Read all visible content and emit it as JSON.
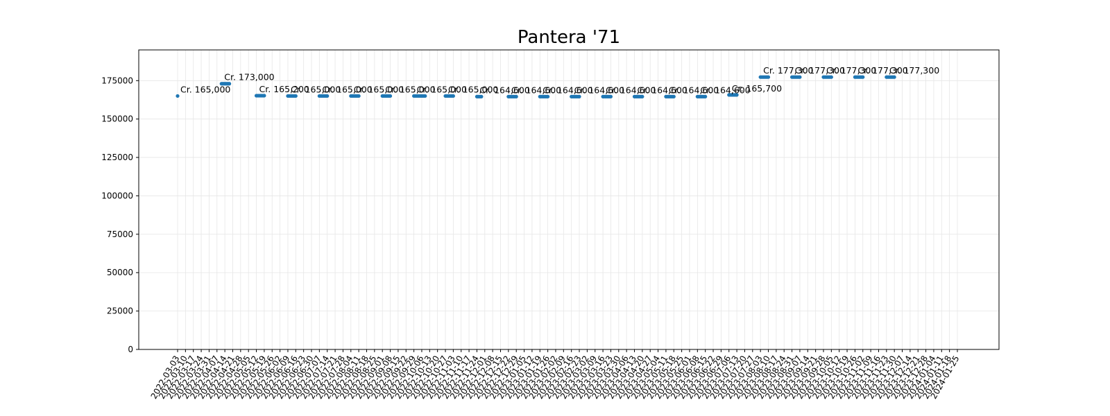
{
  "chart_data": {
    "type": "scatter",
    "title": "Pantera '71",
    "xlabel": "",
    "ylabel": "",
    "ylim": [
      0,
      195000
    ],
    "yticks": [
      0,
      25000,
      50000,
      75000,
      100000,
      125000,
      150000,
      175000
    ],
    "grid": true,
    "legend": "none",
    "color": "#1f77b4",
    "categories": [
      "2022-03-03",
      "2022-03-10",
      "2022-03-17",
      "2022-03-24",
      "2022-03-31",
      "2022-04-07",
      "2022-04-14",
      "2022-04-21",
      "2022-04-28",
      "2022-05-05",
      "2022-05-12",
      "2022-05-19",
      "2022-05-26",
      "2022-06-02",
      "2022-06-09",
      "2022-06-16",
      "2022-06-23",
      "2022-06-30",
      "2022-07-07",
      "2022-07-14",
      "2022-07-21",
      "2022-07-28",
      "2022-08-04",
      "2022-08-11",
      "2022-08-18",
      "2022-08-25",
      "2022-09-01",
      "2022-09-08",
      "2022-09-15",
      "2022-09-22",
      "2022-09-29",
      "2022-10-06",
      "2022-10-13",
      "2022-10-20",
      "2022-10-27",
      "2022-11-03",
      "2022-11-10",
      "2022-11-17",
      "2022-11-24",
      "2022-12-01",
      "2022-12-08",
      "2022-12-15",
      "2022-12-22",
      "2022-12-29",
      "2023-01-05",
      "2023-01-12",
      "2023-01-19",
      "2023-01-26",
      "2023-02-02",
      "2023-02-09",
      "2023-02-16",
      "2023-02-23",
      "2023-03-02",
      "2023-03-09",
      "2023-03-16",
      "2023-03-23",
      "2023-03-30",
      "2023-04-06",
      "2023-04-13",
      "2023-04-20",
      "2023-04-27",
      "2023-05-04",
      "2023-05-11",
      "2023-05-18",
      "2023-05-25",
      "2023-06-01",
      "2023-06-08",
      "2023-06-15",
      "2023-06-22",
      "2023-06-29",
      "2023-07-06",
      "2023-07-13",
      "2023-07-20",
      "2023-07-27",
      "2023-08-03",
      "2023-08-10",
      "2023-08-17",
      "2023-08-24",
      "2023-08-31",
      "2023-09-07",
      "2023-09-14",
      "2023-09-21",
      "2023-09-28",
      "2023-10-05",
      "2023-10-12",
      "2023-10-19",
      "2023-10-26",
      "2023-11-02",
      "2023-11-09",
      "2023-11-16",
      "2023-11-23",
      "2023-11-30",
      "2023-12-07",
      "2023-12-14",
      "2023-12-21",
      "2023-12-28",
      "2024-01-04",
      "2024-01-11",
      "2024-01-18",
      "2024-01-25"
    ],
    "x_tick_labels": [
      "2022-03-03",
      "2022-03-10",
      "2022-03-17",
      "2022-03-24",
      "2022-03-31",
      "2022-04-07",
      "2022-04-14",
      "2022-04-21",
      "2022-04-28",
      "2022-05-05",
      "2022-05-12",
      "2022-05-19",
      "2022-05-26",
      "2022-06-02",
      "2022-06-09",
      "2022-06-16",
      "2022-06-23",
      "2022-06-30",
      "2022-07-07",
      "2022-07-14",
      "2022-07-21",
      "2022-07-28",
      "2022-08-04",
      "2022-08-11",
      "2022-08-18",
      "2022-08-25",
      "2022-09-01",
      "2022-09-08",
      "2022-09-15",
      "2022-09-22",
      "2022-09-29",
      "2022-10-06",
      "2022-10-13",
      "2022-10-20",
      "2022-10-27",
      "2022-11-03",
      "2022-11-10",
      "2022-11-17",
      "2022-11-24",
      "2022-12-01",
      "2022-12-08",
      "2022-12-15",
      "2022-12-22",
      "2022-12-29",
      "2023-01-05",
      "2023-01-12",
      "2023-01-19",
      "2023-01-26",
      "2023-02-02",
      "2023-02-09",
      "2023-02-16",
      "2023-02-23",
      "2023-03-02",
      "2023-03-09",
      "2023-03-16",
      "2023-03-23",
      "2023-03-30",
      "2023-04-06",
      "2023-04-13",
      "2023-04-20",
      "2023-04-27",
      "2023-05-04",
      "2023-05-11",
      "2023-05-18",
      "2023-05-25",
      "2023-06-01",
      "2023-06-08",
      "2023-06-15",
      "2023-06-22",
      "2023-06-29",
      "2023-07-06",
      "2023-07-13",
      "2023-07-20",
      "2023-07-27",
      "2023-08-03",
      "2023-08-10",
      "2023-08-17",
      "2023-08-24",
      "2023-08-31",
      "2023-09-07",
      "2023-09-14",
      "2023-09-21",
      "2023-09-28",
      "2023-10-05",
      "2023-10-12",
      "2023-10-19",
      "2023-10-26",
      "2023-11-02",
      "2023-11-09",
      "2023-11-16",
      "2023-11-23",
      "2023-11-30",
      "2023-12-07",
      "2023-12-14",
      "2023-12-21",
      "2023-12-28",
      "2024-01-04",
      "2024-01-11",
      "2024-01-18",
      "2024-01-25"
    ],
    "points": [
      {
        "x": "2022-03-03",
        "y": 165000
      },
      {
        "x": "2022-04-11",
        "y": 173000
      },
      {
        "x": "2022-04-12",
        "y": 173000
      },
      {
        "x": "2022-04-13",
        "y": 173000
      },
      {
        "x": "2022-04-14",
        "y": 173000
      },
      {
        "x": "2022-04-15",
        "y": 173000
      },
      {
        "x": "2022-04-16",
        "y": 173000
      },
      {
        "x": "2022-04-17",
        "y": 173000
      },
      {
        "x": "2022-04-18",
        "y": 173000
      },
      {
        "x": "2022-05-12",
        "y": 165200
      },
      {
        "x": "2022-05-13",
        "y": 165200
      },
      {
        "x": "2022-05-14",
        "y": 165200
      },
      {
        "x": "2022-05-15",
        "y": 165200
      },
      {
        "x": "2022-05-16",
        "y": 165200
      },
      {
        "x": "2022-05-17",
        "y": 165200
      },
      {
        "x": "2022-05-18",
        "y": 165200
      },
      {
        "x": "2022-05-19",
        "y": 165200
      },
      {
        "x": "2022-06-09",
        "y": 165000
      },
      {
        "x": "2022-06-10",
        "y": 165000
      },
      {
        "x": "2022-06-11",
        "y": 165000
      },
      {
        "x": "2022-06-12",
        "y": 165000
      },
      {
        "x": "2022-06-13",
        "y": 165000
      },
      {
        "x": "2022-06-14",
        "y": 165000
      },
      {
        "x": "2022-06-15",
        "y": 165000
      },
      {
        "x": "2022-06-16",
        "y": 165000
      },
      {
        "x": "2022-07-07",
        "y": 165000
      },
      {
        "x": "2022-07-08",
        "y": 165000
      },
      {
        "x": "2022-07-09",
        "y": 165000
      },
      {
        "x": "2022-07-10",
        "y": 165000
      },
      {
        "x": "2022-07-11",
        "y": 165000
      },
      {
        "x": "2022-07-12",
        "y": 165000
      },
      {
        "x": "2022-07-13",
        "y": 165000
      },
      {
        "x": "2022-07-14",
        "y": 165000
      },
      {
        "x": "2022-08-04",
        "y": 165000
      },
      {
        "x": "2022-08-05",
        "y": 165000
      },
      {
        "x": "2022-08-06",
        "y": 165000
      },
      {
        "x": "2022-08-07",
        "y": 165000
      },
      {
        "x": "2022-08-08",
        "y": 165000
      },
      {
        "x": "2022-08-09",
        "y": 165000
      },
      {
        "x": "2022-08-10",
        "y": 165000
      },
      {
        "x": "2022-08-11",
        "y": 165000
      },
      {
        "x": "2022-09-01",
        "y": 165000
      },
      {
        "x": "2022-09-02",
        "y": 165000
      },
      {
        "x": "2022-09-03",
        "y": 165000
      },
      {
        "x": "2022-09-04",
        "y": 165000
      },
      {
        "x": "2022-09-05",
        "y": 165000
      },
      {
        "x": "2022-09-06",
        "y": 165000
      },
      {
        "x": "2022-09-07",
        "y": 165000
      },
      {
        "x": "2022-09-08",
        "y": 165000
      },
      {
        "x": "2022-09-29",
        "y": 165000
      },
      {
        "x": "2022-09-30",
        "y": 165000
      },
      {
        "x": "2022-10-01",
        "y": 165000
      },
      {
        "x": "2022-10-02",
        "y": 165000
      },
      {
        "x": "2022-10-03",
        "y": 165000
      },
      {
        "x": "2022-10-04",
        "y": 165000
      },
      {
        "x": "2022-10-05",
        "y": 165000
      },
      {
        "x": "2022-10-06",
        "y": 165000
      },
      {
        "x": "2022-10-07",
        "y": 165000
      },
      {
        "x": "2022-10-08",
        "y": 165000
      },
      {
        "x": "2022-10-09",
        "y": 165000
      },
      {
        "x": "2022-10-27",
        "y": 165000
      },
      {
        "x": "2022-10-28",
        "y": 165000
      },
      {
        "x": "2022-10-29",
        "y": 165000
      },
      {
        "x": "2022-10-30",
        "y": 165000
      },
      {
        "x": "2022-10-31",
        "y": 165000
      },
      {
        "x": "2022-11-01",
        "y": 165000
      },
      {
        "x": "2022-11-02",
        "y": 165000
      },
      {
        "x": "2022-11-03",
        "y": 165000
      },
      {
        "x": "2022-11-24",
        "y": 164600
      },
      {
        "x": "2022-11-25",
        "y": 164600
      },
      {
        "x": "2022-11-26",
        "y": 164600
      },
      {
        "x": "2022-11-27",
        "y": 164600
      },
      {
        "x": "2022-11-28",
        "y": 164600
      },
      {
        "x": "2022-12-22",
        "y": 164600
      },
      {
        "x": "2022-12-23",
        "y": 164600
      },
      {
        "x": "2022-12-24",
        "y": 164600
      },
      {
        "x": "2022-12-25",
        "y": 164600
      },
      {
        "x": "2022-12-26",
        "y": 164600
      },
      {
        "x": "2022-12-27",
        "y": 164600
      },
      {
        "x": "2022-12-28",
        "y": 164600
      },
      {
        "x": "2022-12-29",
        "y": 164600
      },
      {
        "x": "2023-01-19",
        "y": 164600
      },
      {
        "x": "2023-01-20",
        "y": 164600
      },
      {
        "x": "2023-01-21",
        "y": 164600
      },
      {
        "x": "2023-01-22",
        "y": 164600
      },
      {
        "x": "2023-01-23",
        "y": 164600
      },
      {
        "x": "2023-01-24",
        "y": 164600
      },
      {
        "x": "2023-01-25",
        "y": 164600
      },
      {
        "x": "2023-01-26",
        "y": 164600
      },
      {
        "x": "2023-02-16",
        "y": 164600
      },
      {
        "x": "2023-02-17",
        "y": 164600
      },
      {
        "x": "2023-02-18",
        "y": 164600
      },
      {
        "x": "2023-02-19",
        "y": 164600
      },
      {
        "x": "2023-02-20",
        "y": 164600
      },
      {
        "x": "2023-02-21",
        "y": 164600
      },
      {
        "x": "2023-02-22",
        "y": 164600
      },
      {
        "x": "2023-02-23",
        "y": 164600
      },
      {
        "x": "2023-03-16",
        "y": 164600
      },
      {
        "x": "2023-03-17",
        "y": 164600
      },
      {
        "x": "2023-03-18",
        "y": 164600
      },
      {
        "x": "2023-03-19",
        "y": 164600
      },
      {
        "x": "2023-03-20",
        "y": 164600
      },
      {
        "x": "2023-03-21",
        "y": 164600
      },
      {
        "x": "2023-03-22",
        "y": 164600
      },
      {
        "x": "2023-03-23",
        "y": 164600
      },
      {
        "x": "2023-04-13",
        "y": 164600
      },
      {
        "x": "2023-04-14",
        "y": 164600
      },
      {
        "x": "2023-04-15",
        "y": 164600
      },
      {
        "x": "2023-04-16",
        "y": 164600
      },
      {
        "x": "2023-04-17",
        "y": 164600
      },
      {
        "x": "2023-04-18",
        "y": 164600
      },
      {
        "x": "2023-04-19",
        "y": 164600
      },
      {
        "x": "2023-04-20",
        "y": 164600
      },
      {
        "x": "2023-05-11",
        "y": 164600
      },
      {
        "x": "2023-05-12",
        "y": 164600
      },
      {
        "x": "2023-05-13",
        "y": 164600
      },
      {
        "x": "2023-05-14",
        "y": 164600
      },
      {
        "x": "2023-05-15",
        "y": 164600
      },
      {
        "x": "2023-05-16",
        "y": 164600
      },
      {
        "x": "2023-05-17",
        "y": 164600
      },
      {
        "x": "2023-05-18",
        "y": 164600
      },
      {
        "x": "2023-06-08",
        "y": 164600
      },
      {
        "x": "2023-06-09",
        "y": 164600
      },
      {
        "x": "2023-06-10",
        "y": 164600
      },
      {
        "x": "2023-06-11",
        "y": 164600
      },
      {
        "x": "2023-06-12",
        "y": 164600
      },
      {
        "x": "2023-06-13",
        "y": 164600
      },
      {
        "x": "2023-06-14",
        "y": 164600
      },
      {
        "x": "2023-06-15",
        "y": 164600
      },
      {
        "x": "2023-07-06",
        "y": 165700
      },
      {
        "x": "2023-07-07",
        "y": 165700
      },
      {
        "x": "2023-07-08",
        "y": 165700
      },
      {
        "x": "2023-07-09",
        "y": 165700
      },
      {
        "x": "2023-07-10",
        "y": 165700
      },
      {
        "x": "2023-07-11",
        "y": 165700
      },
      {
        "x": "2023-07-12",
        "y": 165700
      },
      {
        "x": "2023-07-13",
        "y": 165700
      },
      {
        "x": "2023-08-03",
        "y": 177300
      },
      {
        "x": "2023-08-04",
        "y": 177300
      },
      {
        "x": "2023-08-05",
        "y": 177300
      },
      {
        "x": "2023-08-06",
        "y": 177300
      },
      {
        "x": "2023-08-07",
        "y": 177300
      },
      {
        "x": "2023-08-08",
        "y": 177300
      },
      {
        "x": "2023-08-09",
        "y": 177300
      },
      {
        "x": "2023-08-10",
        "y": 177300
      },
      {
        "x": "2023-08-31",
        "y": 177300
      },
      {
        "x": "2023-09-01",
        "y": 177300
      },
      {
        "x": "2023-09-02",
        "y": 177300
      },
      {
        "x": "2023-09-03",
        "y": 177300
      },
      {
        "x": "2023-09-04",
        "y": 177300
      },
      {
        "x": "2023-09-05",
        "y": 177300
      },
      {
        "x": "2023-09-06",
        "y": 177300
      },
      {
        "x": "2023-09-07",
        "y": 177300
      },
      {
        "x": "2023-09-28",
        "y": 177300
      },
      {
        "x": "2023-09-29",
        "y": 177300
      },
      {
        "x": "2023-09-30",
        "y": 177300
      },
      {
        "x": "2023-10-01",
        "y": 177300
      },
      {
        "x": "2023-10-02",
        "y": 177300
      },
      {
        "x": "2023-10-03",
        "y": 177300
      },
      {
        "x": "2023-10-04",
        "y": 177300
      },
      {
        "x": "2023-10-05",
        "y": 177300
      },
      {
        "x": "2023-10-26",
        "y": 177300
      },
      {
        "x": "2023-10-27",
        "y": 177300
      },
      {
        "x": "2023-10-28",
        "y": 177300
      },
      {
        "x": "2023-10-29",
        "y": 177300
      },
      {
        "x": "2023-10-30",
        "y": 177300
      },
      {
        "x": "2023-10-31",
        "y": 177300
      },
      {
        "x": "2023-11-01",
        "y": 177300
      },
      {
        "x": "2023-11-02",
        "y": 177300
      },
      {
        "x": "2023-11-23",
        "y": 177300
      },
      {
        "x": "2023-11-24",
        "y": 177300
      },
      {
        "x": "2023-11-25",
        "y": 177300
      },
      {
        "x": "2023-11-26",
        "y": 177300
      },
      {
        "x": "2023-11-27",
        "y": 177300
      },
      {
        "x": "2023-11-28",
        "y": 177300
      },
      {
        "x": "2023-11-29",
        "y": 177300
      },
      {
        "x": "2023-11-30",
        "y": 177300
      }
    ],
    "annotations": [
      {
        "x": "2022-03-03",
        "y": 165000,
        "text": "Cr. 165,000"
      },
      {
        "x": "2022-04-11",
        "y": 173000,
        "text": "Cr. 173,000"
      },
      {
        "x": "2022-05-12",
        "y": 165200,
        "text": "Cr. 165,200"
      },
      {
        "x": "2022-06-09",
        "y": 165000,
        "text": "Cr. 165,000"
      },
      {
        "x": "2022-07-07",
        "y": 165000,
        "text": "Cr. 165,000"
      },
      {
        "x": "2022-08-04",
        "y": 165000,
        "text": "Cr. 165,000"
      },
      {
        "x": "2022-09-01",
        "y": 165000,
        "text": "Cr. 165,000"
      },
      {
        "x": "2022-09-29",
        "y": 165000,
        "text": "Cr. 165,000"
      },
      {
        "x": "2022-10-27",
        "y": 165000,
        "text": "Cr. 165,000"
      },
      {
        "x": "2022-11-24",
        "y": 164600,
        "text": "Cr. 164,600"
      },
      {
        "x": "2022-12-22",
        "y": 164600,
        "text": "Cr. 164,600"
      },
      {
        "x": "2023-01-19",
        "y": 164600,
        "text": "Cr. 164,600"
      },
      {
        "x": "2023-02-16",
        "y": 164600,
        "text": "Cr. 164,600"
      },
      {
        "x": "2023-03-16",
        "y": 164600,
        "text": "Cr. 164,600"
      },
      {
        "x": "2023-04-13",
        "y": 164600,
        "text": "Cr. 164,600"
      },
      {
        "x": "2023-05-11",
        "y": 164600,
        "text": "Cr. 164,600"
      },
      {
        "x": "2023-06-08",
        "y": 164600,
        "text": "Cr. 164,600"
      },
      {
        "x": "2023-07-06",
        "y": 165700,
        "text": "Cr. 165,700"
      },
      {
        "x": "2023-08-03",
        "y": 177300,
        "text": "Cr. 177,300"
      },
      {
        "x": "2023-08-31",
        "y": 177300,
        "text": "Cr. 177,300"
      },
      {
        "x": "2023-09-28",
        "y": 177300,
        "text": "Cr. 177,300"
      },
      {
        "x": "2023-10-26",
        "y": 177300,
        "text": "Cr. 177,300"
      },
      {
        "x": "2023-11-23",
        "y": 177300,
        "text": "Cr. 177,300"
      }
    ]
  }
}
